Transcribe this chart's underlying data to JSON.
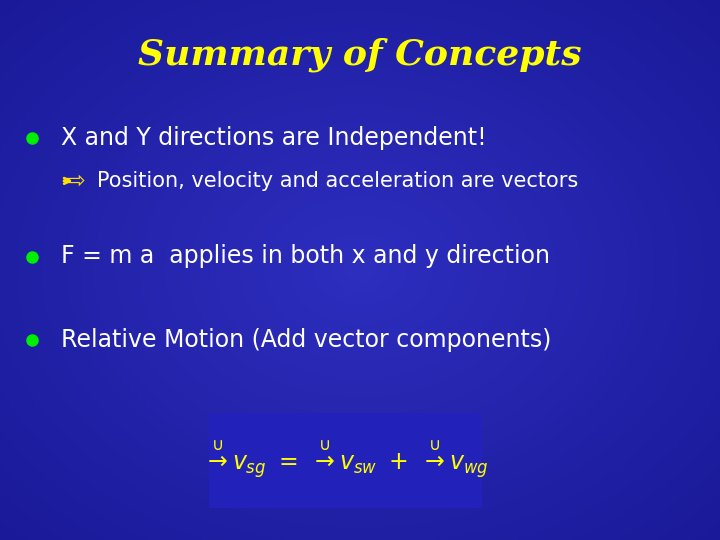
{
  "title": "Summary of Concepts",
  "title_color": "#FFFF00",
  "title_fontsize": 26,
  "bg_center_color": "#3333cc",
  "bg_edge_color": "#1a1acc",
  "bullet_color": "#00ee00",
  "text_color": "#ffffff",
  "bullet1_text": "X and Y directions are Independent!",
  "subbullet_symbol": "⇨",
  "subbullet_text": "Position, velocity and acceleration are vectors",
  "bullet2_text": "F = m a  applies in both x and y direction",
  "bullet3_text": "Relative Motion (Add vector components)",
  "eq_box_color": "#2222bb",
  "eq_text_color": "#FFFF00",
  "figsize": [
    7.2,
    5.4
  ],
  "dpi": 100
}
